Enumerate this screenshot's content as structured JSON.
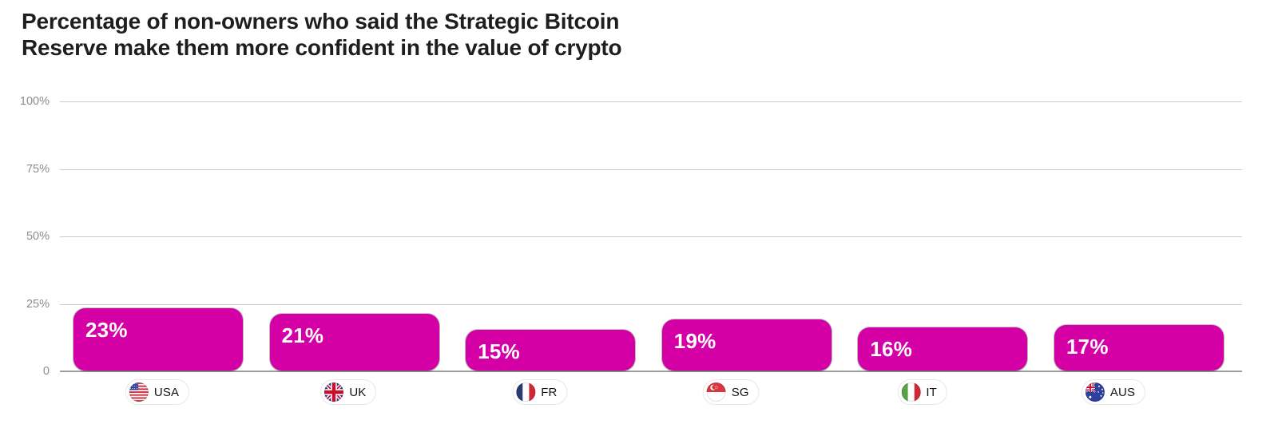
{
  "page": {
    "background": "#ffffff"
  },
  "title": {
    "line1": "Percentage of non-owners who said the Strategic Bitcoin",
    "line2": "Reserve make them more confident in the value of crypto"
  },
  "chart_data": {
    "type": "bar",
    "title": "Percentage of non-owners who said the Strategic Bitcoin Reserve make them more confident in the value of crypto",
    "categories": [
      "USA",
      "UK",
      "FR",
      "SG",
      "IT",
      "AUS"
    ],
    "values": [
      23,
      21,
      15,
      19,
      16,
      17
    ],
    "value_labels": [
      "23%",
      "21%",
      "15%",
      "19%",
      "16%",
      "17%"
    ],
    "flag_icons": [
      "flag-usa-icon",
      "flag-uk-icon",
      "flag-france-icon",
      "flag-singapore-icon",
      "flag-italy-icon",
      "flag-australia-icon"
    ],
    "xlabel": "",
    "ylabel": "",
    "ylim": [
      0,
      100
    ],
    "y_ticks": [
      {
        "label": "100%",
        "value": 100
      },
      {
        "label": "75%",
        "value": 75
      },
      {
        "label": "50%",
        "value": 50
      },
      {
        "label": "25%",
        "value": 25
      },
      {
        "label": "0",
        "value": 0
      }
    ],
    "grid": true,
    "legend": false,
    "bar_color": "#d400a6",
    "bar_label_color": "#ffffff",
    "tick_label_color": "#8c8c8c",
    "gridline_color": "#c9c9c9",
    "zero_line_color": "#9e9e9e"
  }
}
